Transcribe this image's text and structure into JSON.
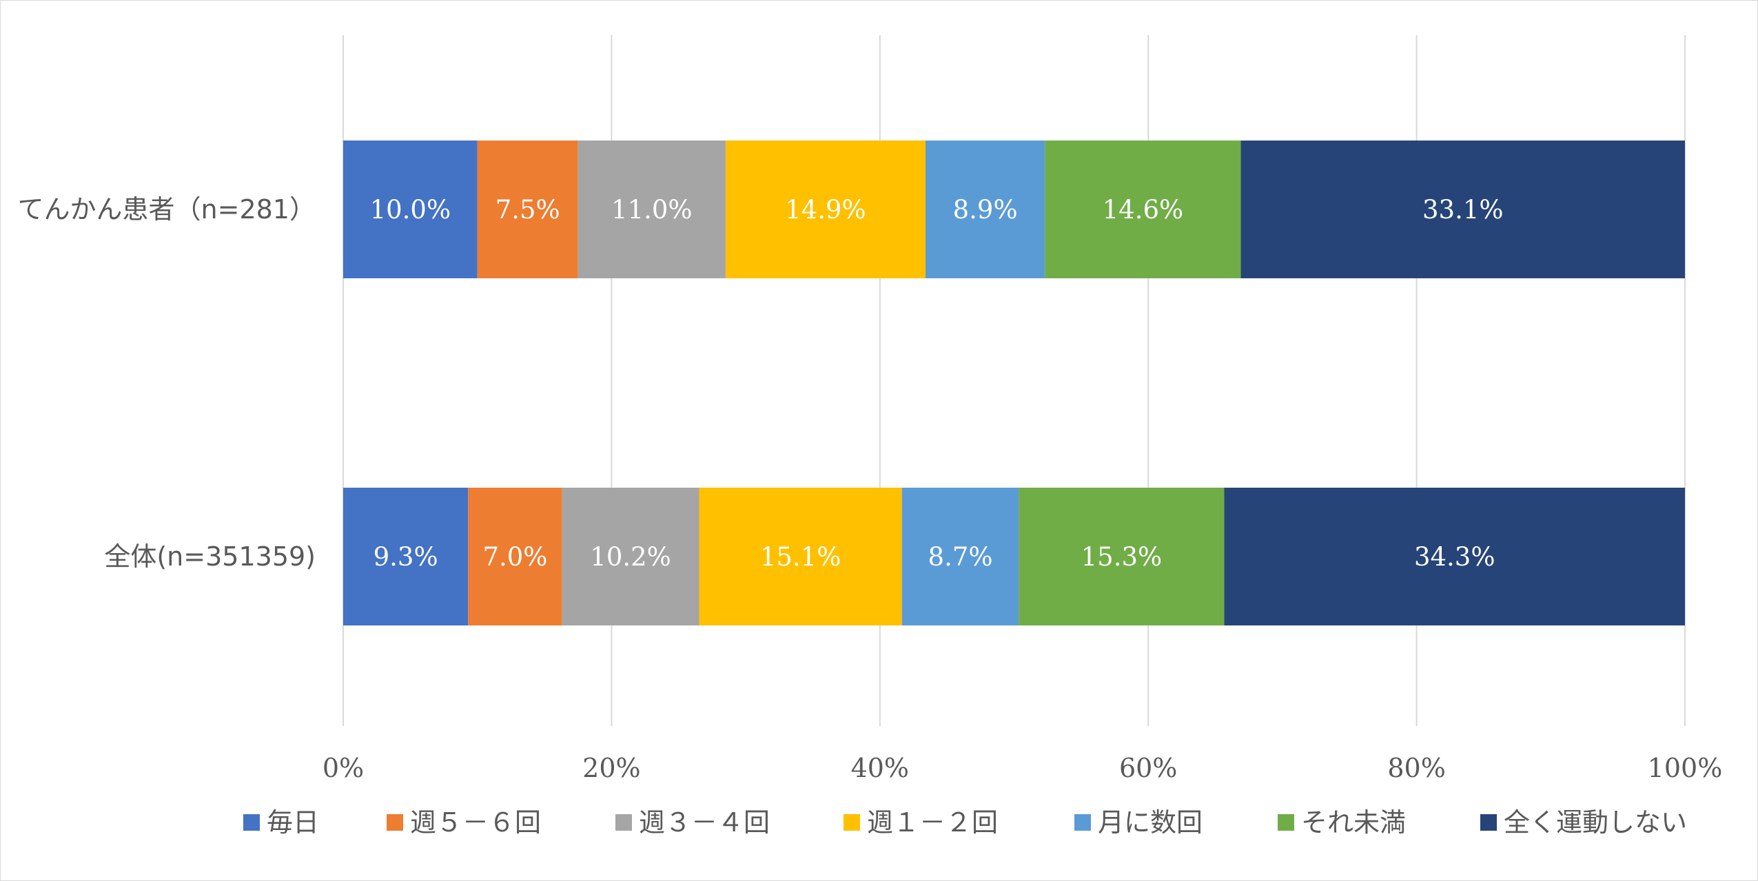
{
  "chart_data": {
    "type": "bar",
    "orientation": "horizontal",
    "stacked": "percent",
    "title": "",
    "xlabel": "",
    "ylabel": "",
    "xlim": [
      0,
      100
    ],
    "ticks": [
      "0%",
      "20%",
      "40%",
      "60%",
      "80%",
      "100%"
    ],
    "tick_values": [
      0,
      20,
      40,
      60,
      80,
      100
    ],
    "grid": true,
    "legend_position": "bottom",
    "categories": [
      "てんかん患者（n=281）",
      "全体(n=351359)"
    ],
    "series": [
      {
        "name": "毎日",
        "color": "#4472C4",
        "values": [
          10.0,
          9.3
        ],
        "labels": [
          "10.0%",
          "9.3%"
        ]
      },
      {
        "name": "週５－６回",
        "color": "#ED7D31",
        "values": [
          7.5,
          7.0
        ],
        "labels": [
          "7.5%",
          "7.0%"
        ]
      },
      {
        "name": "週３－４回",
        "color": "#A5A5A5",
        "values": [
          11.0,
          10.2
        ],
        "labels": [
          "11.0%",
          "10.2%"
        ]
      },
      {
        "name": "週１－２回",
        "color": "#FFC000",
        "values": [
          14.9,
          15.1
        ],
        "labels": [
          "14.9%",
          "15.1%"
        ]
      },
      {
        "name": "月に数回",
        "color": "#5B9BD5",
        "values": [
          8.9,
          8.7
        ],
        "labels": [
          "8.9%",
          "8.7%"
        ]
      },
      {
        "name": "それ未満",
        "color": "#70AD47",
        "values": [
          14.6,
          15.3
        ],
        "labels": [
          "14.6%",
          "15.3%"
        ]
      },
      {
        "name": "全く運動しない",
        "color": "#264478",
        "values": [
          33.1,
          34.3
        ],
        "labels": [
          "33.1%",
          "34.3%"
        ]
      }
    ]
  }
}
